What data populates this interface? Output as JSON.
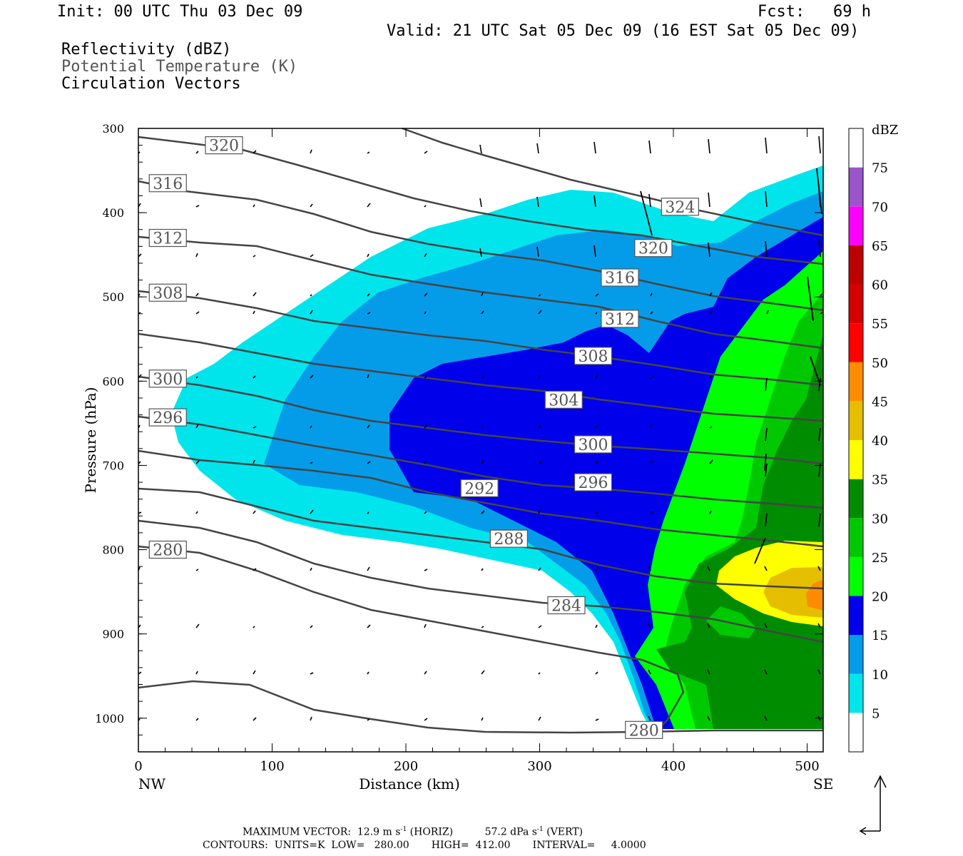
{
  "header": {
    "init": "Init: 00 UTC Thu 03 Dec 09",
    "fcst": "Fcst:   69 h",
    "valid": "Valid: 21 UTC Sat 05 Dec 09 (16 EST Sat 05 Dec 09)",
    "field1": "Reflectivity (dBZ)",
    "field2": "Potential Temperature (K)",
    "field3": "Circulation Vectors"
  },
  "footer": {
    "line1_a": "MAXIMUM VECTOR:  12.9 m s",
    "line1_b": " (HORIZ)          57.2 dPa s",
    "line1_c": " (VERT)",
    "exp": "-1",
    "line2": "CONTOURS:  UNITS=K  LOW=   280.00       HIGH=  412.00       INTERVAL=     4.0000"
  },
  "colors": {
    "c5": "#00e5ec",
    "c10": "#049ce9",
    "c15": "#0000ea",
    "c20": "#00ff00",
    "c25": "#00c800",
    "c30": "#008c00",
    "c35": "#ffff00",
    "c40": "#e6be00",
    "c45": "#ff8c00",
    "c50": "#ff0000",
    "c55": "#d40000",
    "c60": "#bc0000",
    "c65": "#ff00ff",
    "c70": "#9955c9",
    "contour": "#444444"
  },
  "chart_data": {
    "type": "contour",
    "xlabel": "Distance (km)",
    "ylabel": "Pressure (hPa)",
    "xlim": [
      0,
      512
    ],
    "ylim": [
      1040,
      300
    ],
    "x_ticks": [
      0,
      100,
      200,
      300,
      400,
      500
    ],
    "y_ticks": [
      300,
      400,
      500,
      600,
      700,
      800,
      900,
      1000
    ],
    "x_end_labels": {
      "left": "NW",
      "right": "SE"
    },
    "colorbar": {
      "title": "dBZ",
      "levels": [
        5,
        10,
        15,
        20,
        25,
        30,
        35,
        40,
        45,
        50,
        55,
        60,
        65,
        70,
        75
      ]
    },
    "theta_labels": [
      {
        "value": "320",
        "x": 64,
        "p": 320
      },
      {
        "value": "316",
        "x": 22,
        "p": 365
      },
      {
        "value": "312",
        "x": 22,
        "p": 430
      },
      {
        "value": "308",
        "x": 22,
        "p": 495
      },
      {
        "value": "300",
        "x": 22,
        "p": 597
      },
      {
        "value": "296",
        "x": 22,
        "p": 643
      },
      {
        "value": "280",
        "x": 22,
        "p": 800
      },
      {
        "value": "324",
        "x": 405,
        "p": 393
      },
      {
        "value": "320",
        "x": 385,
        "p": 442
      },
      {
        "value": "316",
        "x": 360,
        "p": 477
      },
      {
        "value": "312",
        "x": 360,
        "p": 526
      },
      {
        "value": "308",
        "x": 340,
        "p": 570
      },
      {
        "value": "304",
        "x": 318,
        "p": 622
      },
      {
        "value": "300",
        "x": 340,
        "p": 675
      },
      {
        "value": "296",
        "x": 340,
        "p": 720
      },
      {
        "value": "292",
        "x": 255,
        "p": 727
      },
      {
        "value": "288",
        "x": 277,
        "p": 787
      },
      {
        "value": "284",
        "x": 320,
        "p": 866
      },
      {
        "value": "280",
        "x": 378,
        "p": 1014
      }
    ]
  }
}
